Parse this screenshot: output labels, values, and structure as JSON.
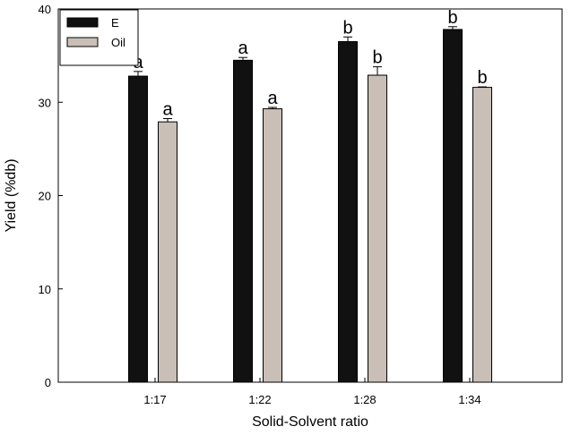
{
  "chart_data": {
    "type": "bar",
    "xlabel": "Solid-Solvent ratio",
    "ylabel": "Yield (%db)",
    "ylim": [
      0,
      40
    ],
    "yticks": [
      0,
      10,
      20,
      30,
      40
    ],
    "categories": [
      "1:17",
      "1:22",
      "1:28",
      "1:34"
    ],
    "legend_position": "top-left",
    "series": [
      {
        "name": "E",
        "color": "#111111",
        "values": [
          32.8,
          34.5,
          36.5,
          37.8
        ],
        "errors": [
          0.5,
          0.3,
          0.5,
          0.3
        ],
        "labels": [
          "a",
          "a",
          "b",
          "b"
        ]
      },
      {
        "name": "Oil",
        "color": "#c9bfb6",
        "values": [
          27.9,
          29.3,
          32.9,
          31.6
        ],
        "errors": [
          0.35,
          0.15,
          0.9,
          0.05
        ],
        "labels": [
          "a",
          "a",
          "b",
          "b"
        ]
      }
    ]
  }
}
